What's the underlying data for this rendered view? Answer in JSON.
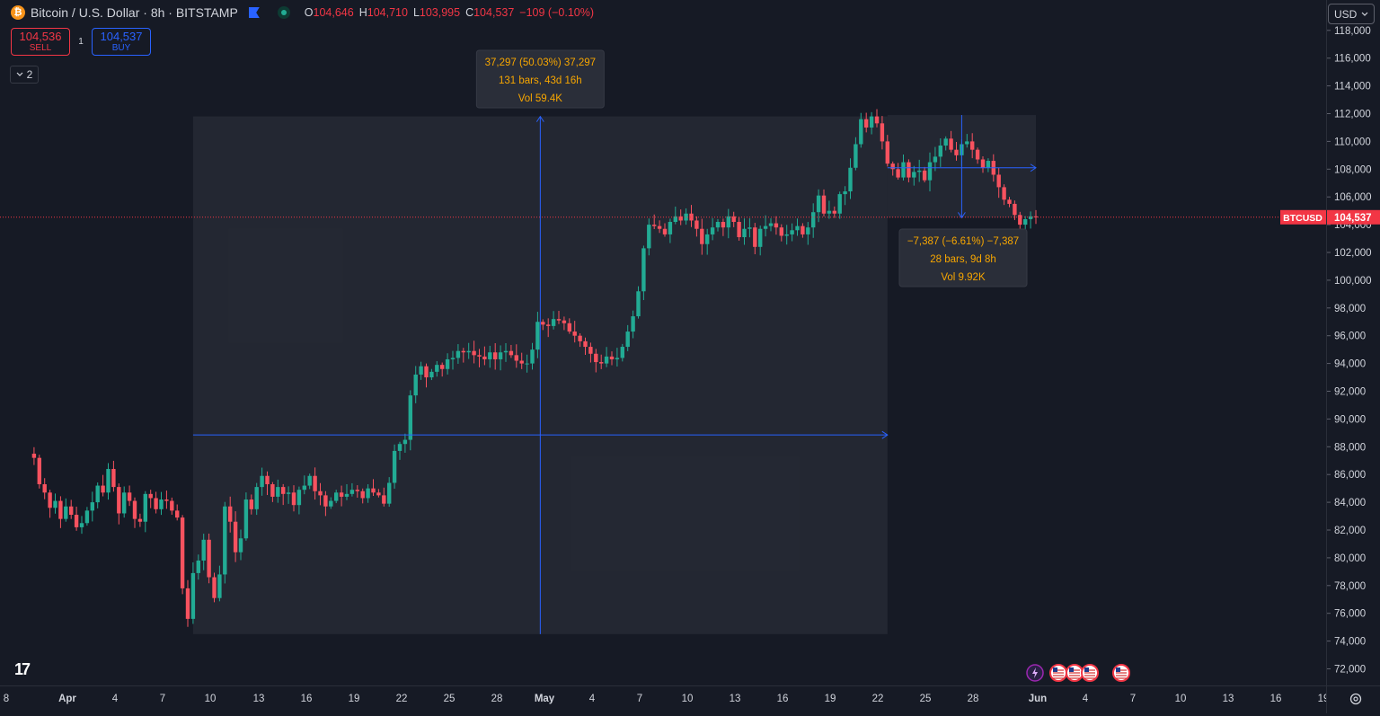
{
  "header": {
    "coin_icon": "bitcoin-icon",
    "title": "Bitcoin / U.S. Dollar · 8h · BITSTAMP",
    "ohlc": [
      {
        "key": "O",
        "value": "104,646"
      },
      {
        "key": "H",
        "value": "104,710"
      },
      {
        "key": "L",
        "value": "103,995"
      },
      {
        "key": "C",
        "value": "104,537"
      }
    ],
    "change": "−109 (−0.10%)",
    "change_color": "#f23645"
  },
  "trade": {
    "sell_price": "104,536",
    "sell_label": "SELL",
    "spread": "1",
    "buy_price": "104,537",
    "buy_label": "BUY"
  },
  "indicators_toggle": {
    "count": "2"
  },
  "currency": {
    "selected": "USD"
  },
  "measure_up": {
    "line1": "37,297 (50.03%) 37,297",
    "line2": "131 bars, 43d 16h",
    "line3": "Vol 59.4K"
  },
  "measure_down": {
    "line1": "−7,387 (−6.61%) −7,387",
    "line2": "28 bars, 9d 8h",
    "line3": "Vol 9.92K"
  },
  "last_price": {
    "symbol": "BTCUSD",
    "value": "104,537",
    "color": "#f23645"
  },
  "colors": {
    "up": "#22ab94",
    "down": "#f7525f",
    "measure": "#2962ff",
    "orange_text": "#f7a600"
  },
  "logo_text": "17",
  "events": [
    "lightning-icon",
    "us-flag-icon",
    "us-flag-icon",
    "us-flag-icon",
    "us-flag-icon"
  ],
  "chart_data": {
    "type": "candlestick",
    "ylim": [
      71000,
      118500
    ],
    "price_ticks": [
      "72,000",
      "74,000",
      "76,000",
      "78,000",
      "80,000",
      "82,000",
      "84,000",
      "86,000",
      "88,000",
      "90,000",
      "92,000",
      "94,000",
      "96,000",
      "98,000",
      "100,000",
      "102,000",
      "104,000",
      "106,000",
      "108,000",
      "110,000",
      "112,000",
      "114,000",
      "116,000",
      "118,000"
    ],
    "time_ticks": [
      "8",
      "Apr",
      "4",
      "7",
      "10",
      "13",
      "16",
      "19",
      "22",
      "25",
      "28",
      "May",
      "4",
      "7",
      "10",
      "13",
      "16",
      "19",
      "22",
      "25",
      "28",
      "Jun",
      "4",
      "7",
      "10",
      "13",
      "16",
      "19"
    ],
    "bold_time_ticks": [
      "Apr",
      "May",
      "Jun"
    ],
    "closes_8h": [
      87200,
      85300,
      84700,
      83600,
      84100,
      82800,
      83700,
      83100,
      82200,
      82500,
      83400,
      84000,
      85200,
      84700,
      86400,
      85100,
      83200,
      84700,
      84100,
      82800,
      82600,
      84600,
      84300,
      83500,
      84200,
      84100,
      83400,
      82900,
      77800,
      75600,
      78900,
      79800,
      81300,
      78600,
      77100,
      78800,
      83700,
      82600,
      80400,
      81400,
      84200,
      83500,
      85100,
      85900,
      85300,
      84400,
      85100,
      84600,
      84700,
      83800,
      84900,
      85200,
      85900,
      84800,
      84500,
      83700,
      84100,
      84700,
      84400,
      84600,
      84900,
      84800,
      84300,
      85000,
      84700,
      84500,
      83900,
      85400,
      87700,
      88200,
      88500,
      91700,
      93200,
      93800,
      93000,
      93400,
      93900,
      93600,
      94300,
      94400,
      94900,
      94800,
      94900,
      94600,
      94500,
      94300,
      94800,
      94300,
      94800,
      94900,
      94600,
      94200,
      94000,
      94000,
      95000,
      97000,
      96800,
      96700,
      97200,
      97100,
      96900,
      96300,
      96000,
      95600,
      95200,
      94700,
      94100,
      94000,
      94500,
      94300,
      94400,
      95200,
      96300,
      97400,
      99200,
      102300,
      104000,
      103900,
      103700,
      103300,
      104200,
      104600,
      104300,
      104800,
      104300,
      103700,
      102600,
      103300,
      103800,
      104200,
      103800,
      104600,
      104200,
      103100,
      103700,
      103800,
      102400,
      103700,
      103900,
      104100,
      103800,
      103200,
      103300,
      103600,
      103900,
      103300,
      103800,
      104900,
      106100,
      104800,
      105000,
      104800,
      106200,
      106400,
      108100,
      109800,
      111600,
      111000,
      111800,
      111300,
      110000,
      108400,
      108000,
      107400,
      108500,
      107400,
      107800,
      107900,
      107200,
      108500,
      108900,
      109700,
      110200,
      109400,
      109000,
      109800,
      110000,
      109400,
      108700,
      108100,
      108600,
      107600,
      106700,
      105800,
      105500,
      104700,
      104000,
      104400,
      104600,
      104537
    ],
    "measure_up": {
      "from": 74500,
      "to": 111800,
      "change": "37,297",
      "percent": "50.03%",
      "bars": 131,
      "duration": "43d 16h",
      "volume": "59.4K"
    },
    "measure_down": {
      "from": 111900,
      "to": 104500,
      "change": "−7,387",
      "percent": "−6.61%",
      "bars": 28,
      "duration": "9d 8h",
      "volume": "9.92K"
    }
  }
}
